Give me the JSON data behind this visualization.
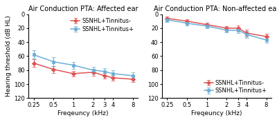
{
  "left_title": "Air Conduction PTA: Affected ear",
  "right_title": "Air Conduction PTA: Non-affected ear",
  "xlabel": "Freqeuncy (kHz)",
  "ylabel": "Hearing threshold (dB HL)",
  "x_values": [
    0.25,
    0.5,
    1,
    2,
    3,
    4,
    8
  ],
  "x_labels": [
    "0.25",
    "0.5",
    "1",
    "2",
    "3",
    "4",
    "8"
  ],
  "left_tinnitus_minus_y": [
    70,
    79,
    85,
    83,
    88,
    91,
    93
  ],
  "left_tinnitus_minus_err": [
    5,
    5,
    4,
    5,
    4,
    4,
    4
  ],
  "left_tinnitus_plus_y": [
    58,
    68,
    73,
    80,
    82,
    85,
    88
  ],
  "left_tinnitus_plus_err": [
    6,
    6,
    5,
    5,
    5,
    5,
    5
  ],
  "right_tinnitus_minus_y": [
    6,
    10,
    15,
    20,
    20,
    27,
    32
  ],
  "right_tinnitus_minus_err": [
    3,
    3,
    3,
    3,
    4,
    5,
    4
  ],
  "right_tinnitus_plus_y": [
    8,
    13,
    17,
    23,
    23,
    29,
    37
  ],
  "right_tinnitus_plus_err": [
    3,
    3,
    3,
    3,
    4,
    5,
    4
  ],
  "color_minus": "#e05252",
  "color_plus": "#6baed6",
  "marker_minus": "D",
  "marker_plus": "s",
  "left_ylim": [
    120,
    0
  ],
  "left_yticks": [
    0,
    20,
    40,
    60,
    80,
    100,
    120
  ],
  "right_ylim": [
    120,
    0
  ],
  "right_yticks": [
    0,
    20,
    40,
    60,
    80,
    100,
    120
  ],
  "background_color": "#ffffff",
  "title_fontsize": 7.0,
  "label_fontsize": 6.5,
  "tick_fontsize": 6.0,
  "legend_fontsize": 6.0,
  "left_legend_loc": "upper right",
  "right_legend_loc": "lower right"
}
